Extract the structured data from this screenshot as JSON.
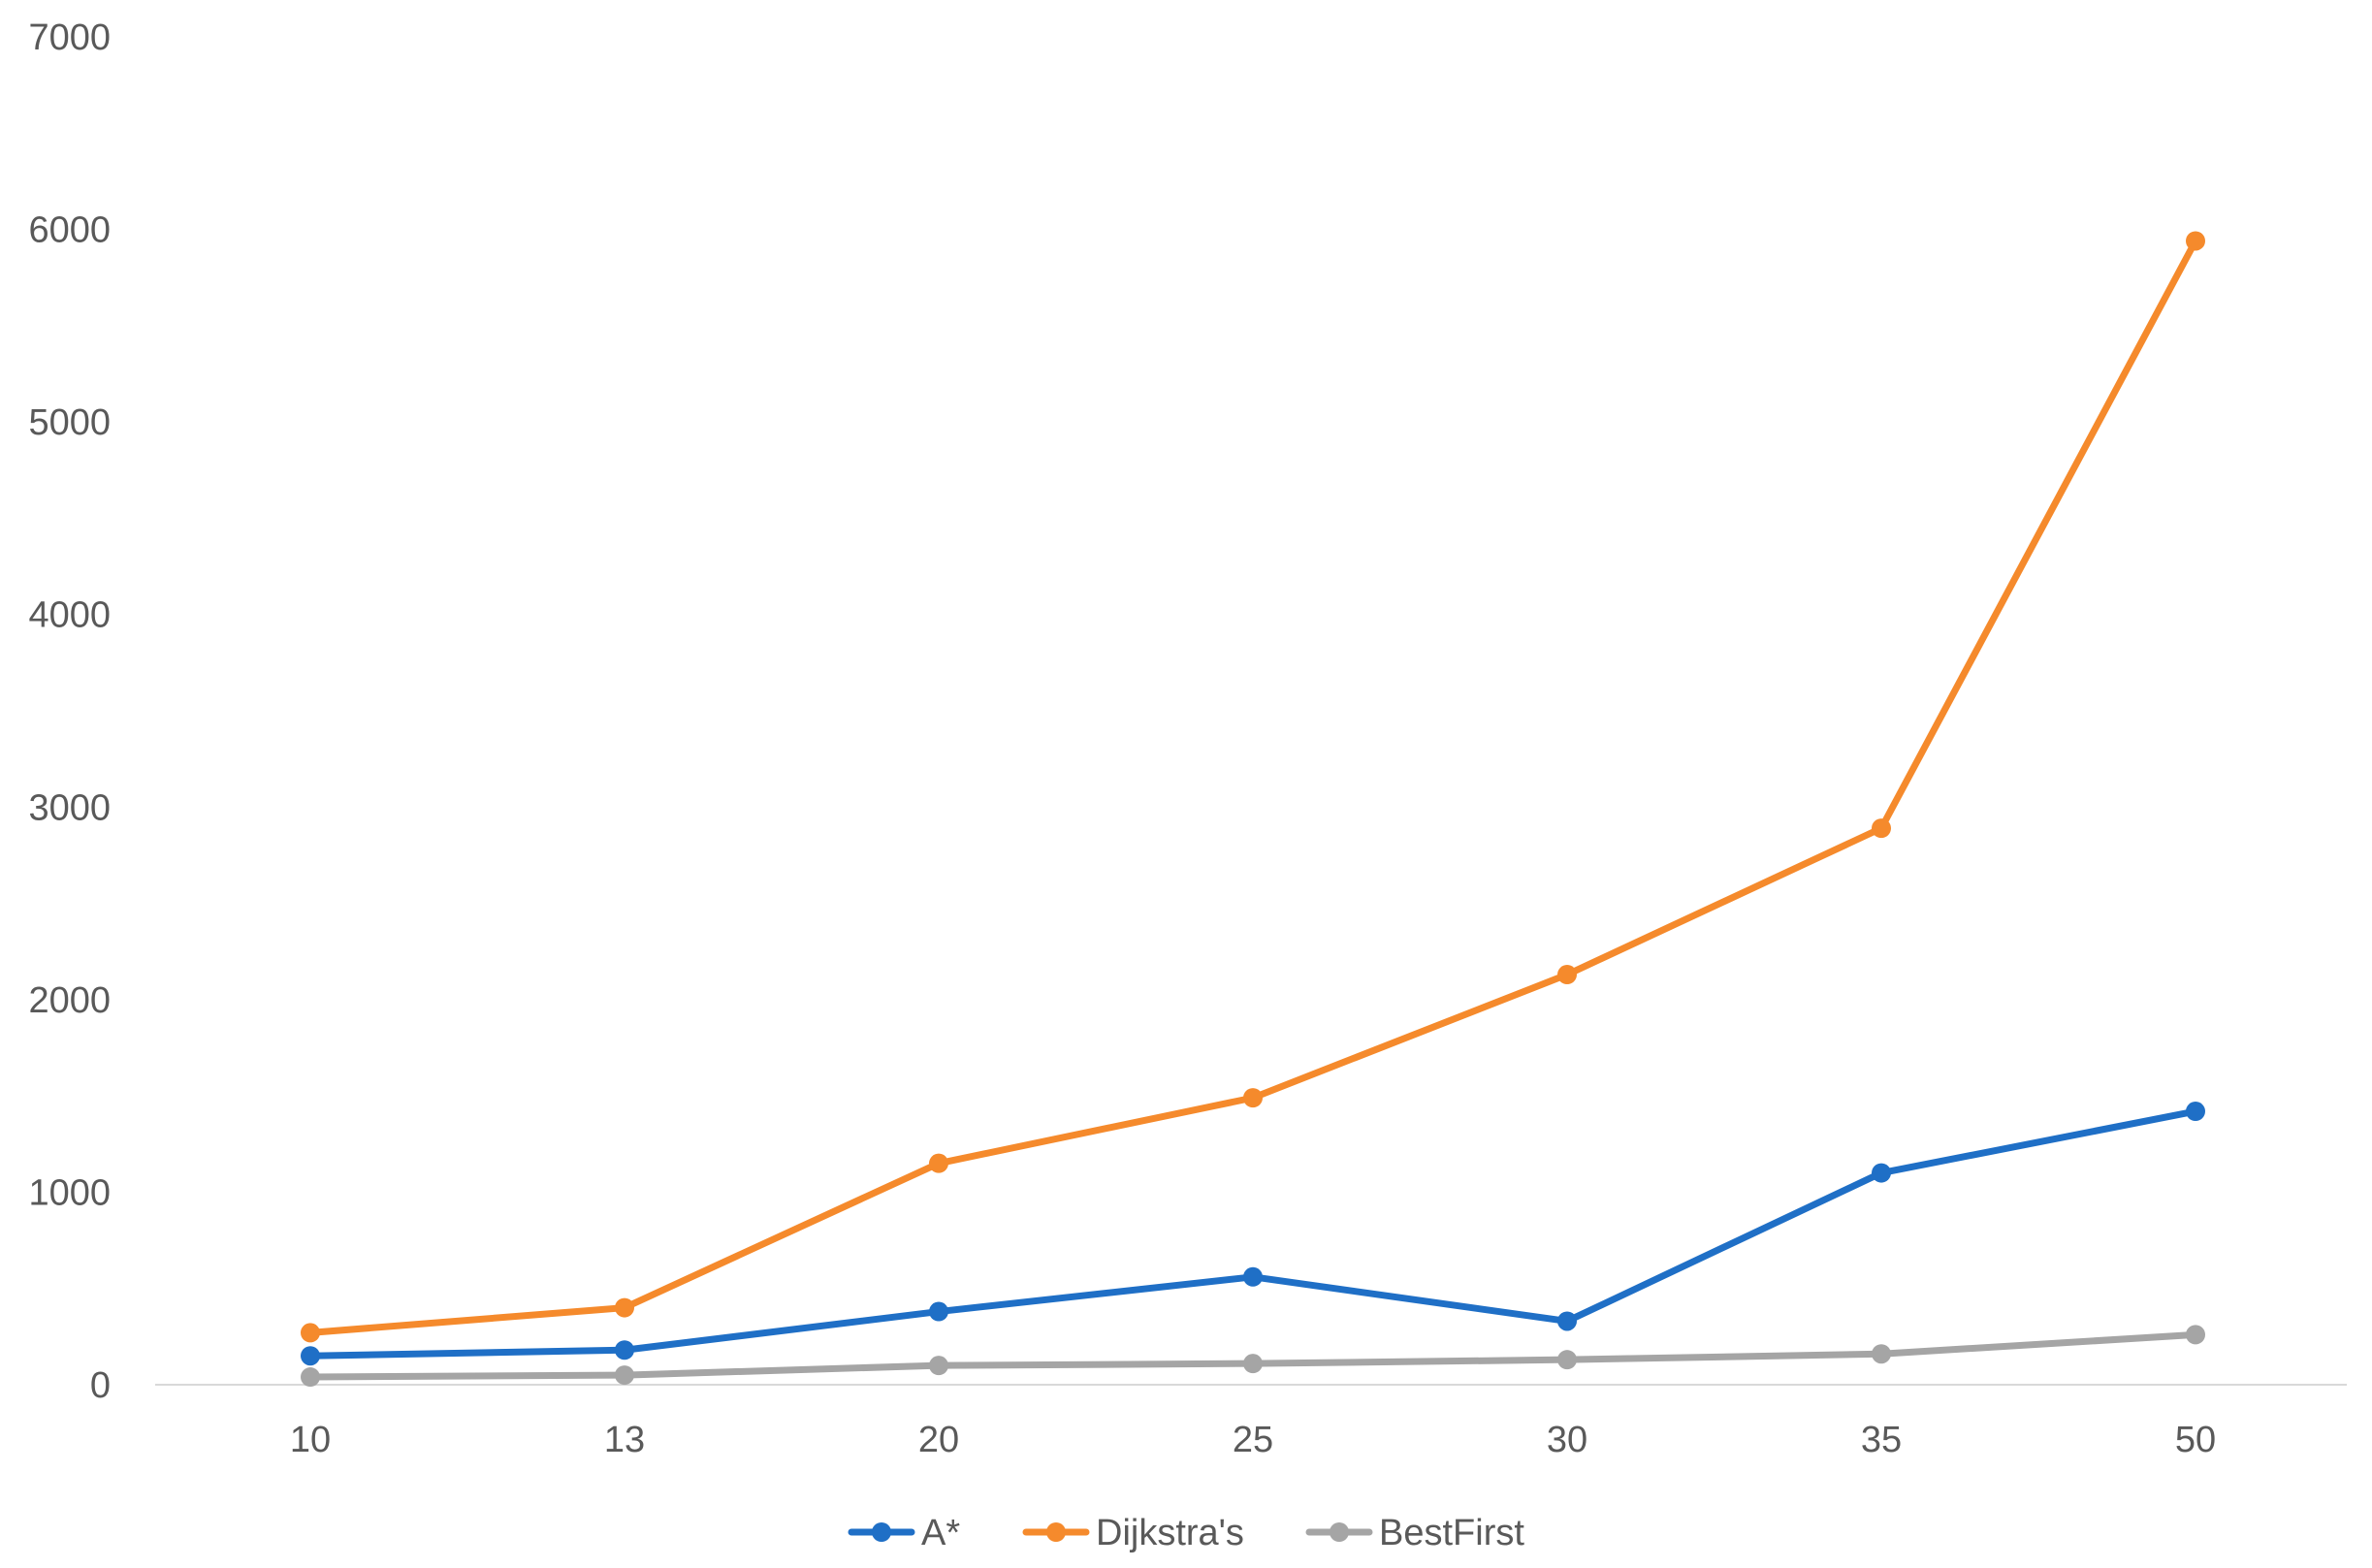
{
  "chart_data": {
    "type": "line",
    "title": "",
    "xlabel": "",
    "ylabel": "",
    "categories": [
      "10",
      "13",
      "20",
      "25",
      "30",
      "35",
      "50"
    ],
    "ylim": [
      0,
      7000
    ],
    "yticks": [
      "0",
      "1000",
      "2000",
      "3000",
      "4000",
      "5000",
      "6000",
      "7000"
    ],
    "grid": false,
    "legend_position": "bottom",
    "series": [
      {
        "name": "A*",
        "color": "#1f6fc6",
        "values": [
          150,
          180,
          380,
          560,
          330,
          1100,
          1420
        ]
      },
      {
        "name": "Dijkstra's",
        "color": "#f58a2c",
        "values": [
          270,
          400,
          1150,
          1490,
          2130,
          2890,
          5940
        ]
      },
      {
        "name": "BestFirst",
        "color": "#a5a5a5",
        "values": [
          40,
          50,
          100,
          110,
          130,
          160,
          260
        ]
      }
    ]
  }
}
